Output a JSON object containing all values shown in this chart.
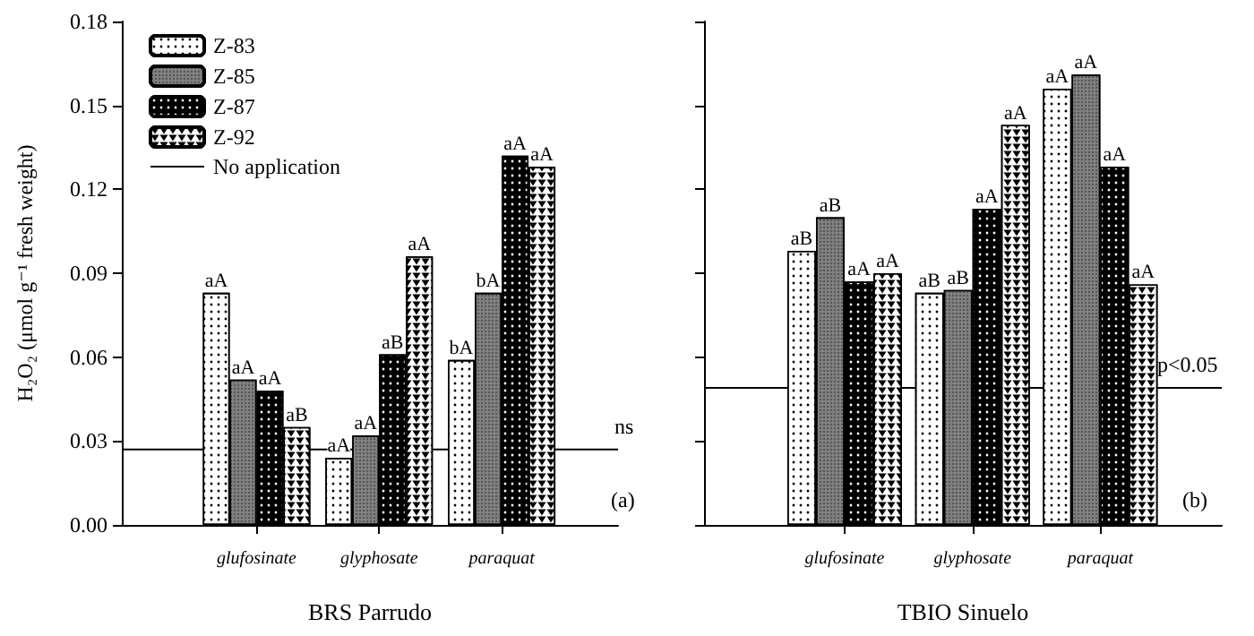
{
  "chart_data": [
    {
      "type": "bar",
      "xlabel": "BRS Parrudo",
      "ylabel": "H₂O₂ (μmol g⁻¹ fresh weight)",
      "categories": [
        "glufosinate",
        "glyphosate",
        "paraquat"
      ],
      "series": [
        {
          "name": "Z-83",
          "color": "#ffffff",
          "values": [
            0.083,
            0.024,
            0.059
          ],
          "value_labels": [
            "aA",
            "aA",
            "bA"
          ]
        },
        {
          "name": "Z-85",
          "color": "#808080",
          "values": [
            0.052,
            0.032,
            0.083
          ],
          "value_labels": [
            "aA",
            "aA",
            "bA"
          ]
        },
        {
          "name": "Z-87",
          "color": "#000000",
          "values": [
            0.048,
            0.061,
            0.132
          ],
          "value_labels": [
            "aA",
            "aB",
            "aA"
          ]
        },
        {
          "name": "Z-92",
          "color": "#ffffff",
          "values": [
            0.035,
            0.096,
            0.128
          ],
          "value_labels": [
            "aB",
            "aA",
            "aA"
          ]
        }
      ],
      "ylim": [
        0,
        0.18
      ],
      "yticks": [
        {
          "value": 0,
          "label": "0.00"
        },
        0.03,
        0.06,
        0.09,
        0.12,
        0.15,
        0.18
      ],
      "legend": "top left",
      "grid": false,
      "ref_lines": [
        {
          "axis": "y",
          "value": 0.027,
          "label": "No application",
          "color": "#000000"
        }
      ],
      "annotations": [
        "ns",
        "(a)"
      ]
    },
    {
      "type": "bar",
      "xlabel": "TBIO Sinuelo",
      "categories": [
        "glufosinate",
        "glyphosate",
        "paraquat"
      ],
      "series": [
        {
          "color": "#ffffff",
          "values": [
            0.098,
            0.083,
            0.156
          ],
          "value_labels": [
            "aB",
            "aB",
            "aA"
          ]
        },
        {
          "color": "#808080",
          "values": [
            0.11,
            0.084,
            0.161
          ],
          "value_labels": [
            "aB",
            "aB",
            "aA"
          ]
        },
        {
          "color": "#000000",
          "values": [
            0.087,
            0.113,
            0.128
          ],
          "value_labels": [
            "aA",
            "aA",
            "aA"
          ]
        },
        {
          "color": "#ffffff",
          "values": [
            0.09,
            0.143,
            0.086
          ],
          "value_labels": [
            "aA",
            "aA",
            "aA"
          ]
        }
      ],
      "ylim": [
        0,
        0.18
      ],
      "yticks": [
        0,
        0.03,
        0.06,
        0.09,
        0.12,
        0.15,
        0.18
      ],
      "tick_labels": "x",
      "legend": false,
      "grid": false,
      "ref_lines": [
        {
          "axis": "y",
          "value": 0.049,
          "color": "#000000"
        }
      ],
      "annotations": [
        "p<0.05",
        "(b)"
      ]
    }
  ]
}
